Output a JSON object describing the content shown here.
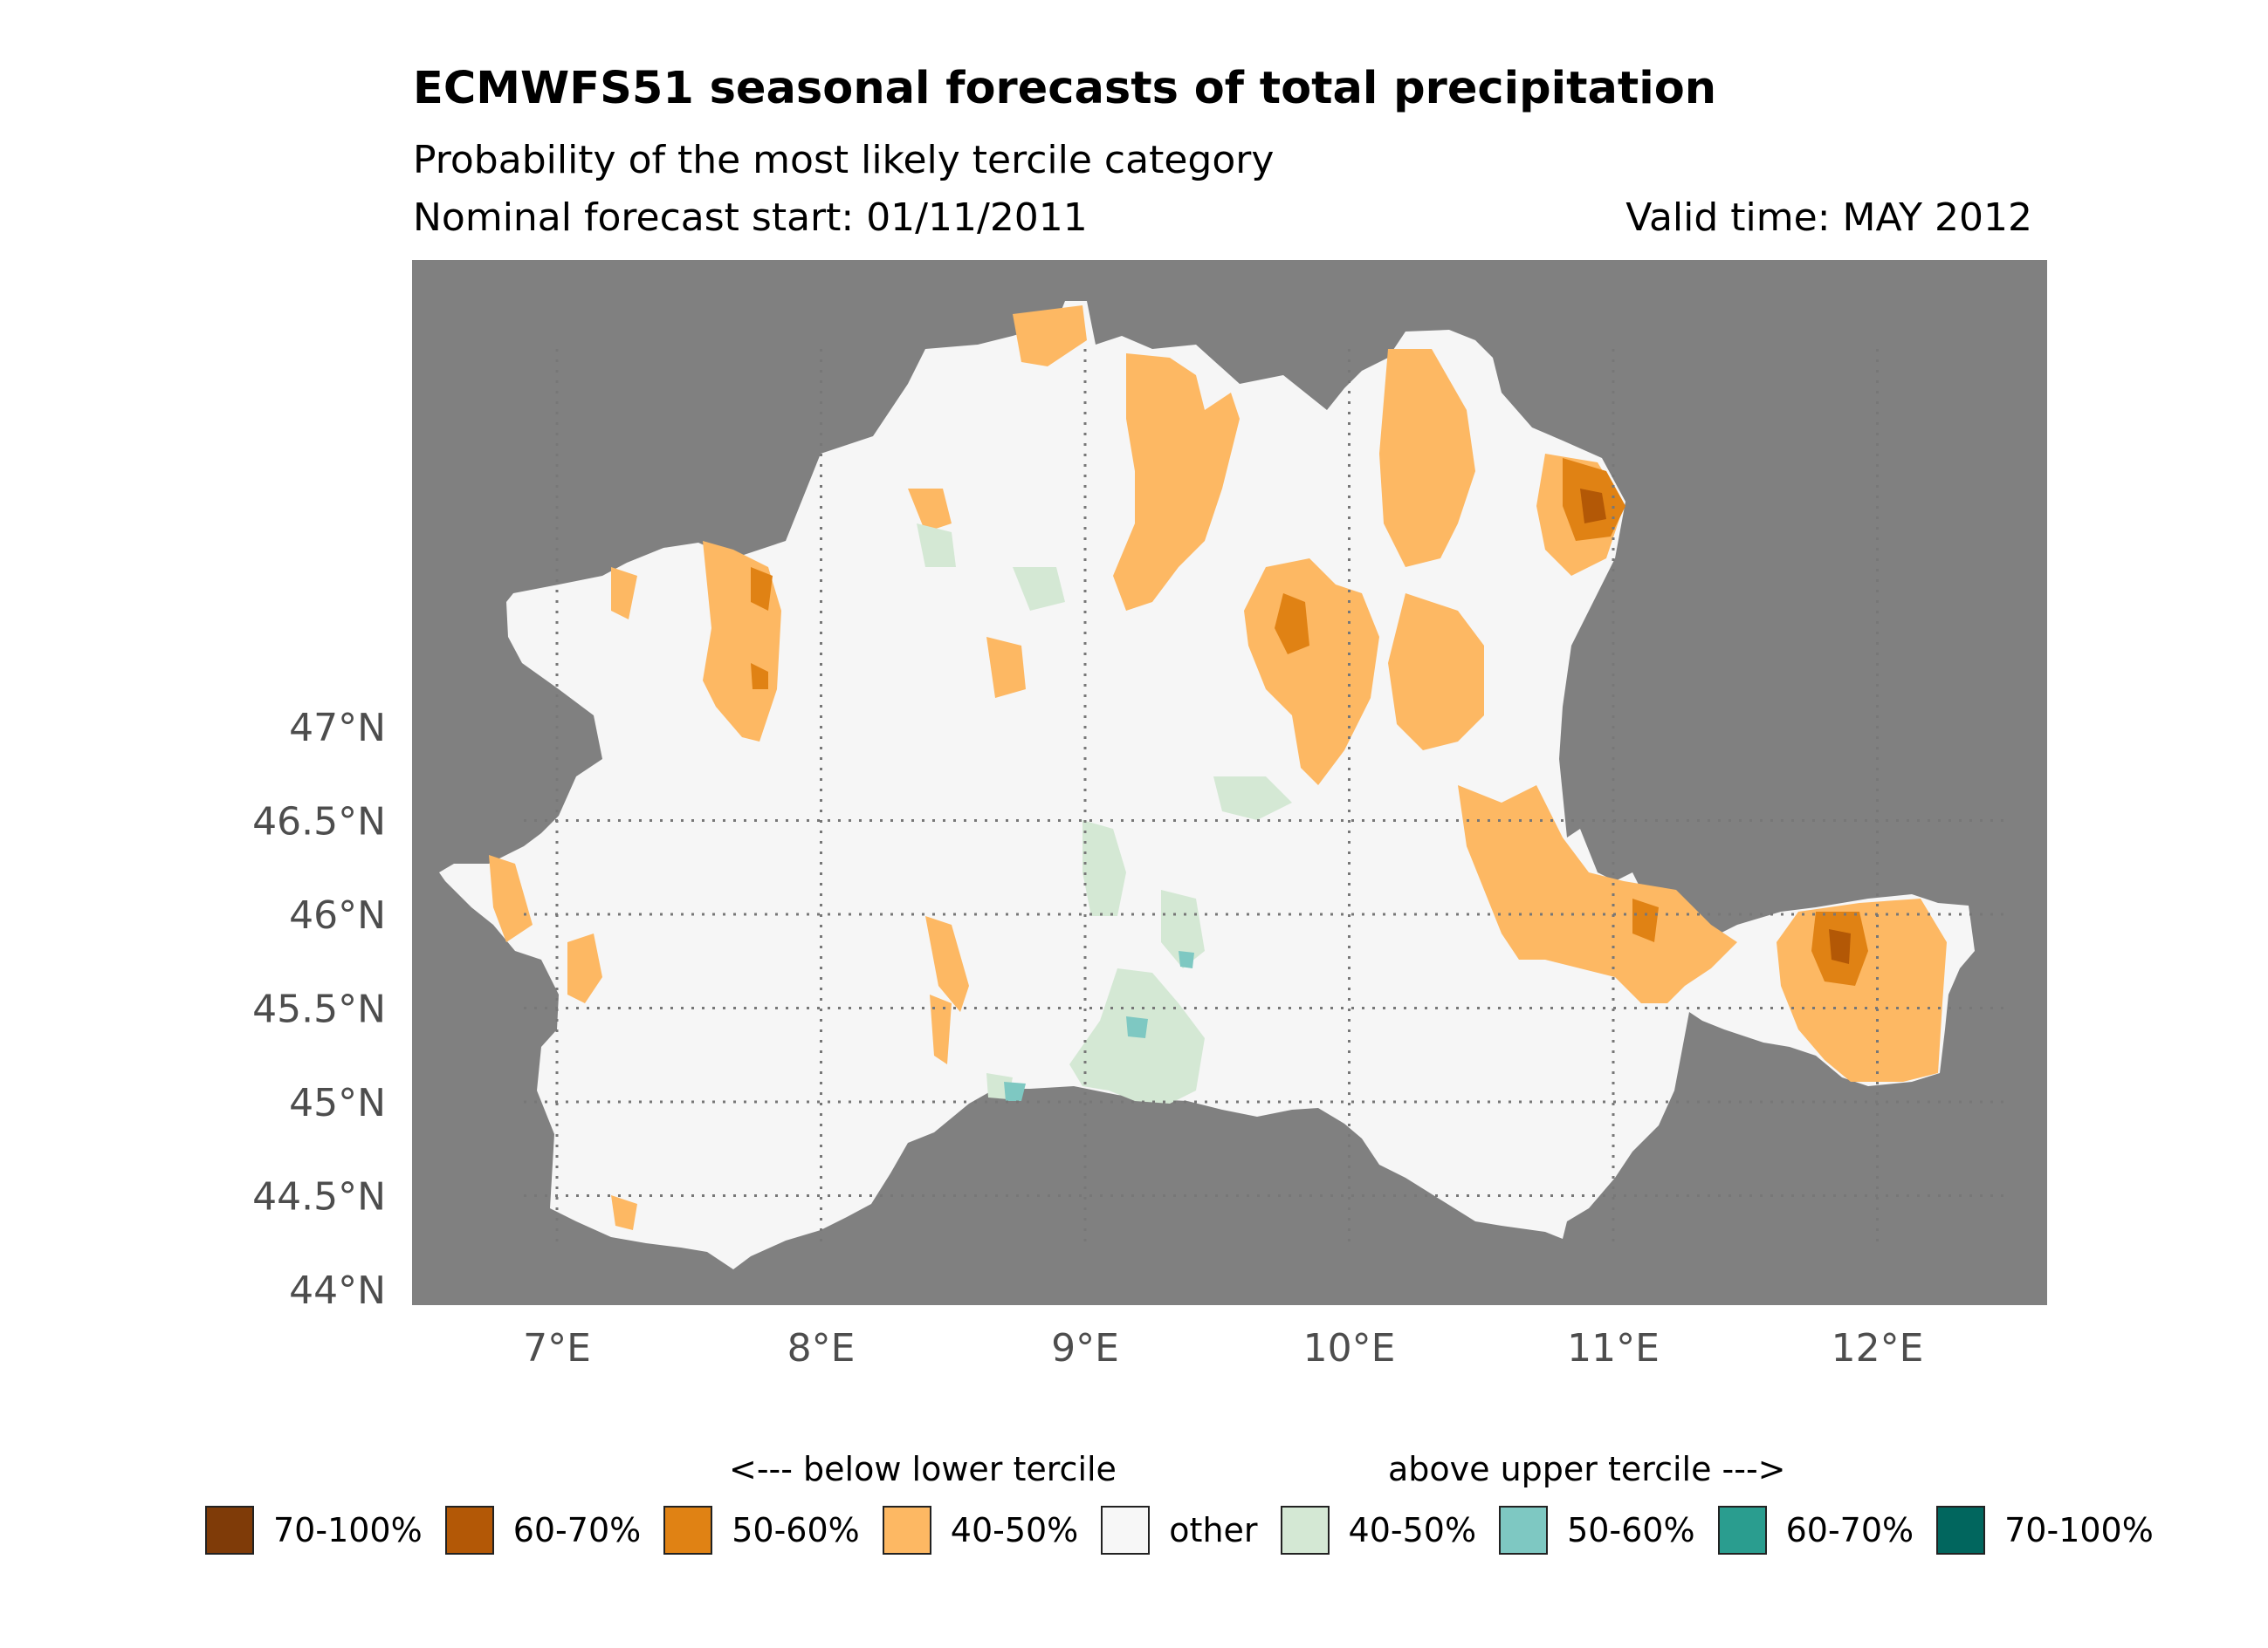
{
  "title": "ECMWFS51 seasonal forecasts of total precipitation",
  "subtitle": "Probability of the most likely tercile category",
  "start_label": "Nominal forecast start: 01/11/2011",
  "valid_label": "Valid time: MAY 2012",
  "map": {
    "lon_range": [
      6.5,
      12.7
    ],
    "lat_range": [
      44.0,
      47.0
    ],
    "lon_ticks": [
      {
        "value": 7,
        "label": "7°E"
      },
      {
        "value": 8,
        "label": "8°E"
      },
      {
        "value": 9,
        "label": "9°E"
      },
      {
        "value": 10,
        "label": "10°E"
      },
      {
        "value": 11,
        "label": "11°E"
      },
      {
        "value": 12,
        "label": "12°E"
      }
    ],
    "lat_ticks": [
      {
        "value": 44,
        "label": "44°N"
      },
      {
        "value": 44.5,
        "label": "44.5°N"
      },
      {
        "value": 45,
        "label": "45°N"
      },
      {
        "value": 45.5,
        "label": "45.5°N"
      },
      {
        "value": 46,
        "label": "46°N"
      },
      {
        "value": 46.5,
        "label": "46.5°N"
      },
      {
        "value": 47,
        "label": "47°N"
      }
    ],
    "background_color": "#808080",
    "land_color": "#f6f6f6",
    "gridlines": "dotted"
  },
  "legend": {
    "below_header": "<--- below lower tercile",
    "above_header": "above upper tercile --->",
    "items": [
      {
        "label": "70-100%",
        "color": "#7f3b08"
      },
      {
        "label": "60-70%",
        "color": "#b35806"
      },
      {
        "label": "50-60%",
        "color": "#e08214"
      },
      {
        "label": "40-50%",
        "color": "#fdb863"
      },
      {
        "label": "other",
        "color": "#f7f7f7"
      },
      {
        "label": "40-50%",
        "color": "#d4e8d4"
      },
      {
        "label": "50-60%",
        "color": "#7ec8c2"
      },
      {
        "label": "60-70%",
        "color": "#2a9d8f"
      },
      {
        "label": "70-100%",
        "color": "#01665e"
      }
    ]
  }
}
